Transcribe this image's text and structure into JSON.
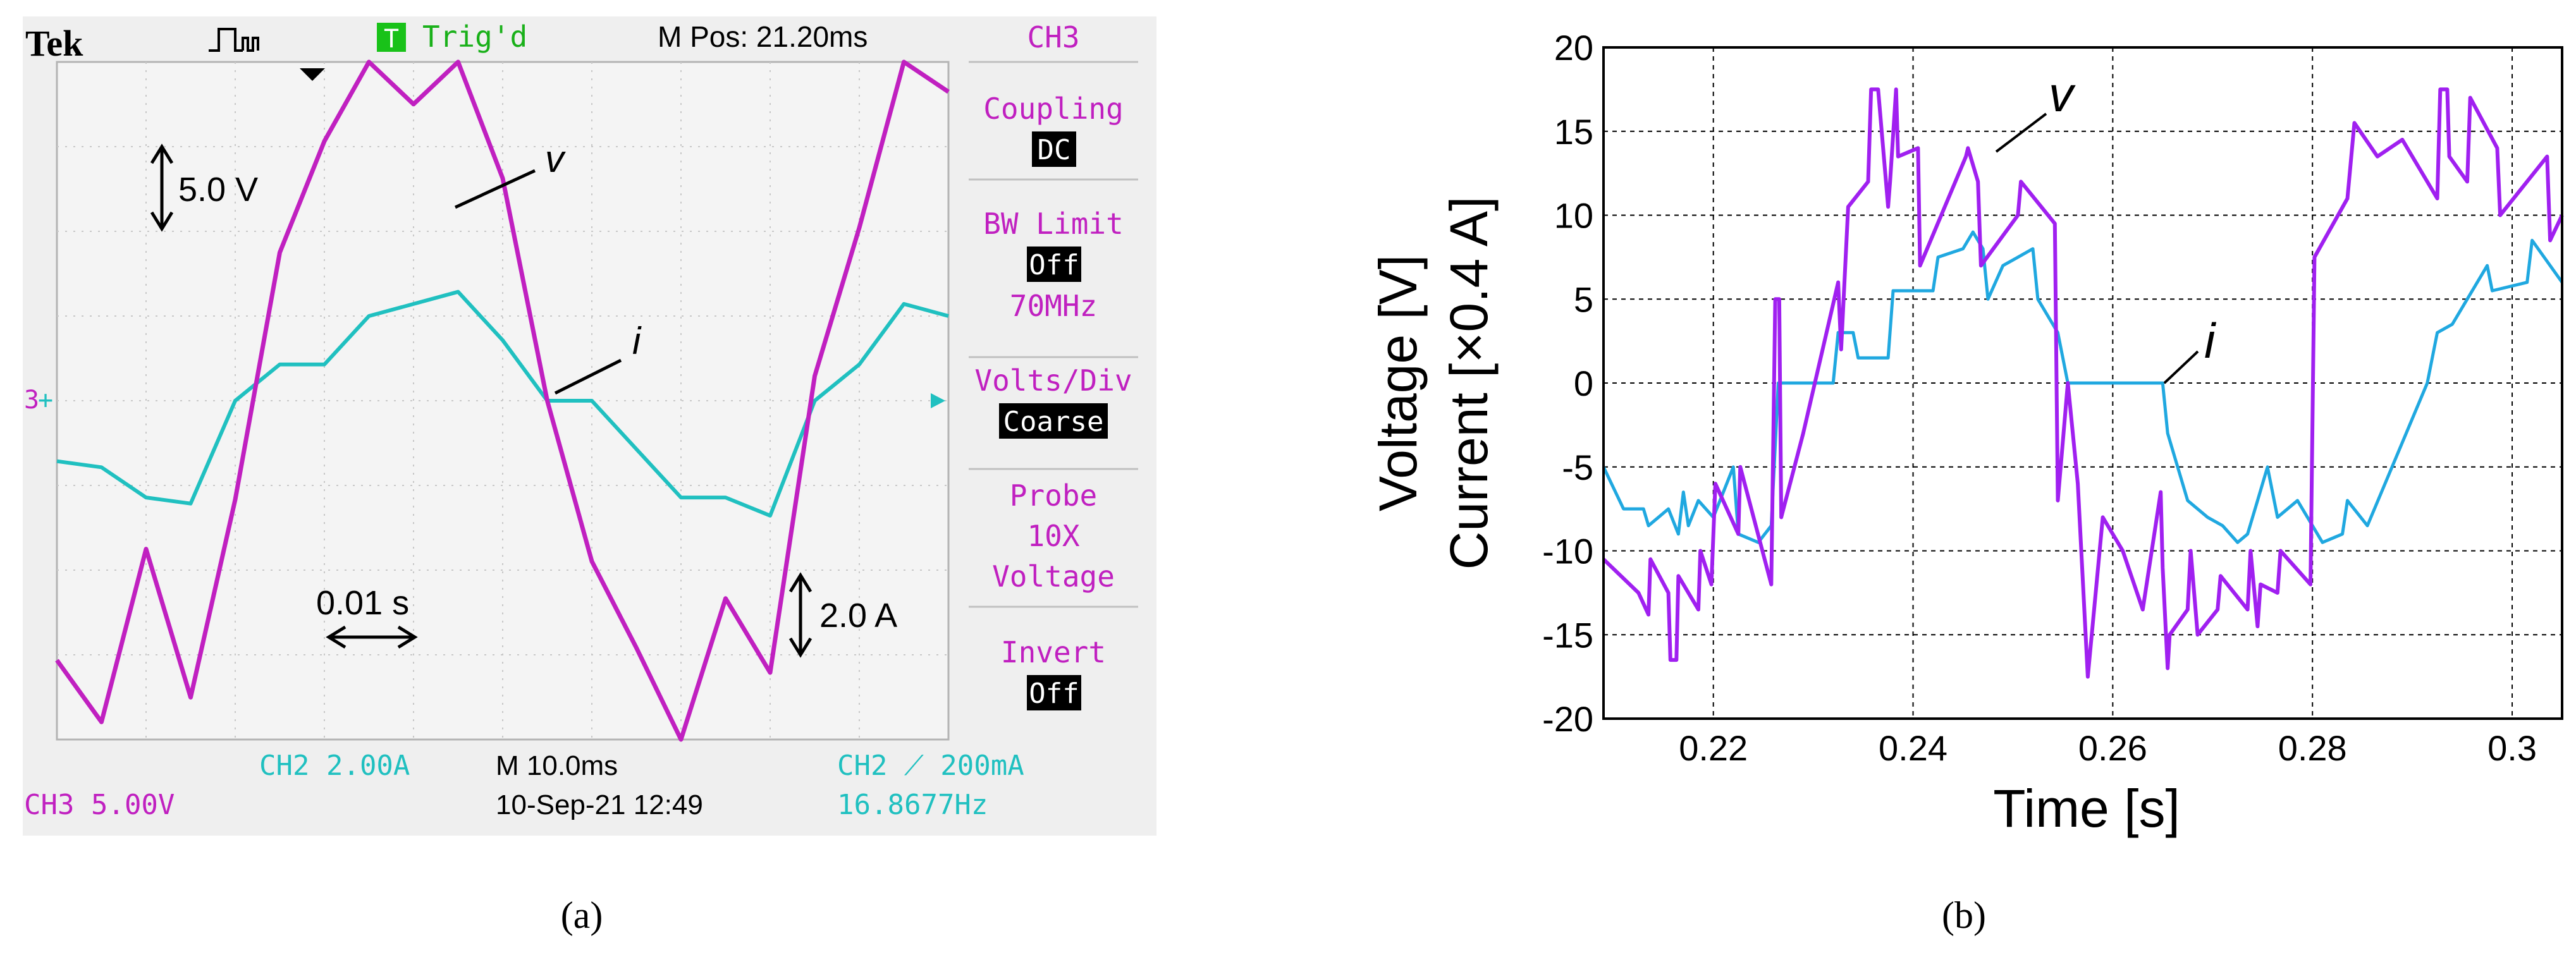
{
  "panel_labels": [
    "(a)",
    "(b)"
  ],
  "scope": {
    "brand": "Tek",
    "trig_state": "Trig'd",
    "trig_badge": "T",
    "m_pos": "M Pos: 21.20ms",
    "menu": {
      "channel": "CH3",
      "coupling_label": "Coupling",
      "coupling_value": "DC",
      "bw_label": "BW Limit",
      "bw_value": "Off",
      "bw_freq": "70MHz",
      "vdiv_label": "Volts/Div",
      "vdiv_value": "Coarse",
      "probe_label": "Probe",
      "probe_value1": "10X",
      "probe_value2": "Voltage",
      "invert_label": "Invert",
      "invert_value": "Off"
    },
    "annotations": {
      "volt_scale": "5.0 V",
      "amp_scale": "2.0 A",
      "time_scale": "0.01 s",
      "v": "v",
      "i": "i"
    },
    "status": {
      "ch2_scale": "CH2  2.00A",
      "ch3_scale": "CH3  5.00V",
      "timebase": "M 10.0ms",
      "datetime": "10-Sep-21 12:49",
      "trigger": "CH2 ⟋ 200mA",
      "frequency": "16.8677Hz"
    },
    "colors": {
      "voltage": "#c020c0",
      "current": "#20c0c0",
      "screen": "#efefef"
    }
  },
  "chart_data": [
    {
      "type": "line",
      "title": "",
      "xlabel": "",
      "ylabel": "",
      "x": [
        0.2,
        0.205,
        0.21,
        0.215,
        0.22,
        0.225,
        0.23,
        0.235,
        0.24,
        0.245,
        0.25,
        0.255,
        0.26,
        0.265,
        0.27,
        0.275,
        0.28,
        0.285,
        0.29,
        0.295,
        0.3
      ],
      "series": [
        {
          "name": "v",
          "values": [
            -10.5,
            -13,
            -6,
            -12,
            -4,
            6,
            10.5,
            17,
            12,
            14,
            9,
            0,
            -6.5,
            -10,
            -14,
            -8,
            -11,
            1,
            7,
            15,
            12.5
          ]
        },
        {
          "name": "i",
          "values": [
            -5,
            -5.5,
            -8,
            -8.5,
            0,
            3,
            3,
            7,
            8,
            9,
            5,
            0,
            0,
            -4,
            -8,
            -8,
            -9.5,
            0,
            3,
            8,
            7
          ]
        }
      ]
    },
    {
      "type": "line",
      "title": "",
      "xlabel": "Time [s]",
      "ylabel": "Voltage [V]",
      "ylabel2": "Current [×0.4 A]",
      "xlim": [
        0.209,
        0.305
      ],
      "ylim": [
        -20,
        20
      ],
      "xticks": [
        "0.22",
        "0.24",
        "0.26",
        "0.28",
        "0.3"
      ],
      "yticks": [
        "20",
        "15",
        "10",
        "5",
        "0",
        "-5",
        "-10",
        "-15",
        "-20"
      ],
      "grid": true,
      "annotations": [
        "v",
        "i"
      ],
      "series": [
        {
          "name": "v",
          "color": "#a020f0",
          "x": [
            0.209,
            0.2125,
            0.2135,
            0.2137,
            0.2155,
            0.2157,
            0.2163,
            0.2165,
            0.2185,
            0.2187,
            0.2198,
            0.2202,
            0.2225,
            0.2227,
            0.2258,
            0.2262,
            0.2266,
            0.2268,
            0.229,
            0.2325,
            0.2328,
            0.2335,
            0.2355,
            0.2358,
            0.2365,
            0.2375,
            0.2377,
            0.2383,
            0.2385,
            0.2405,
            0.2407,
            0.2453,
            0.2455,
            0.2465,
            0.2468,
            0.2505,
            0.2508,
            0.2542,
            0.2545,
            0.2555,
            0.2565,
            0.2575,
            0.259,
            0.261,
            0.263,
            0.2648,
            0.265,
            0.2655,
            0.2657,
            0.2675,
            0.2678,
            0.2685,
            0.2705,
            0.2708,
            0.2735,
            0.2738,
            0.2745,
            0.2748,
            0.2765,
            0.2768,
            0.2798,
            0.2802,
            0.2835,
            0.2842,
            0.2865,
            0.289,
            0.2925,
            0.2928,
            0.2935,
            0.2937,
            0.2955,
            0.2958,
            0.2985,
            0.2988,
            0.3035,
            0.3038,
            0.305
          ],
          "values": [
            -10.5,
            -12.5,
            -13.8,
            -10.5,
            -12.5,
            -16.5,
            -16.5,
            -11.5,
            -13.5,
            -10,
            -12,
            -6,
            -9,
            -5,
            -12,
            5,
            5,
            -8,
            -3,
            6,
            2,
            10.5,
            12,
            17.5,
            17.5,
            10.5,
            12,
            17.5,
            13.5,
            14,
            7,
            13.5,
            14,
            12,
            7,
            10,
            12,
            9.5,
            -7,
            0,
            -6,
            -17.5,
            -8,
            -10,
            -13.5,
            -6.5,
            -11,
            -17,
            -15,
            -13.5,
            -10,
            -15,
            -13.5,
            -11.5,
            -13.5,
            -10,
            -14.5,
            -12,
            -12.5,
            -10,
            -12,
            7.5,
            11,
            15.5,
            13.5,
            14.5,
            11,
            17.5,
            17.5,
            13.5,
            12,
            17,
            14,
            10,
            13.5,
            8.5,
            10
          ]
        },
        {
          "name": "i",
          "color": "#20a8e0",
          "x": [
            0.209,
            0.211,
            0.213,
            0.2135,
            0.2145,
            0.2155,
            0.2165,
            0.217,
            0.2175,
            0.2185,
            0.22,
            0.222,
            0.2225,
            0.2245,
            0.2258,
            0.2265,
            0.232,
            0.2325,
            0.234,
            0.2345,
            0.2375,
            0.238,
            0.242,
            0.2425,
            0.245,
            0.246,
            0.247,
            0.2475,
            0.249,
            0.2505,
            0.252,
            0.2525,
            0.2545,
            0.2555,
            0.265,
            0.2655,
            0.2675,
            0.2695,
            0.271,
            0.2725,
            0.2735,
            0.2745,
            0.2755,
            0.2765,
            0.2785,
            0.281,
            0.283,
            0.2835,
            0.2855,
            0.2915,
            0.2925,
            0.294,
            0.2975,
            0.298,
            0.3015,
            0.302,
            0.305
          ],
          "values": [
            -5,
            -7.5,
            -7.5,
            -8.5,
            -8,
            -7.5,
            -9,
            -6.5,
            -8.5,
            -7,
            -8,
            -5,
            -9,
            -9.5,
            -8.5,
            0,
            0,
            3,
            3,
            1.5,
            1.5,
            5.5,
            5.5,
            7.5,
            8,
            9,
            8,
            5,
            7,
            7.5,
            8,
            5,
            3,
            0,
            0,
            -3,
            -7,
            -8,
            -8.5,
            -9.5,
            -9,
            -7,
            -5,
            -8,
            -7,
            -9.5,
            -9,
            -7,
            -8.5,
            0,
            3,
            3.5,
            7,
            5.5,
            6,
            8.5,
            6
          ]
        }
      ]
    }
  ]
}
